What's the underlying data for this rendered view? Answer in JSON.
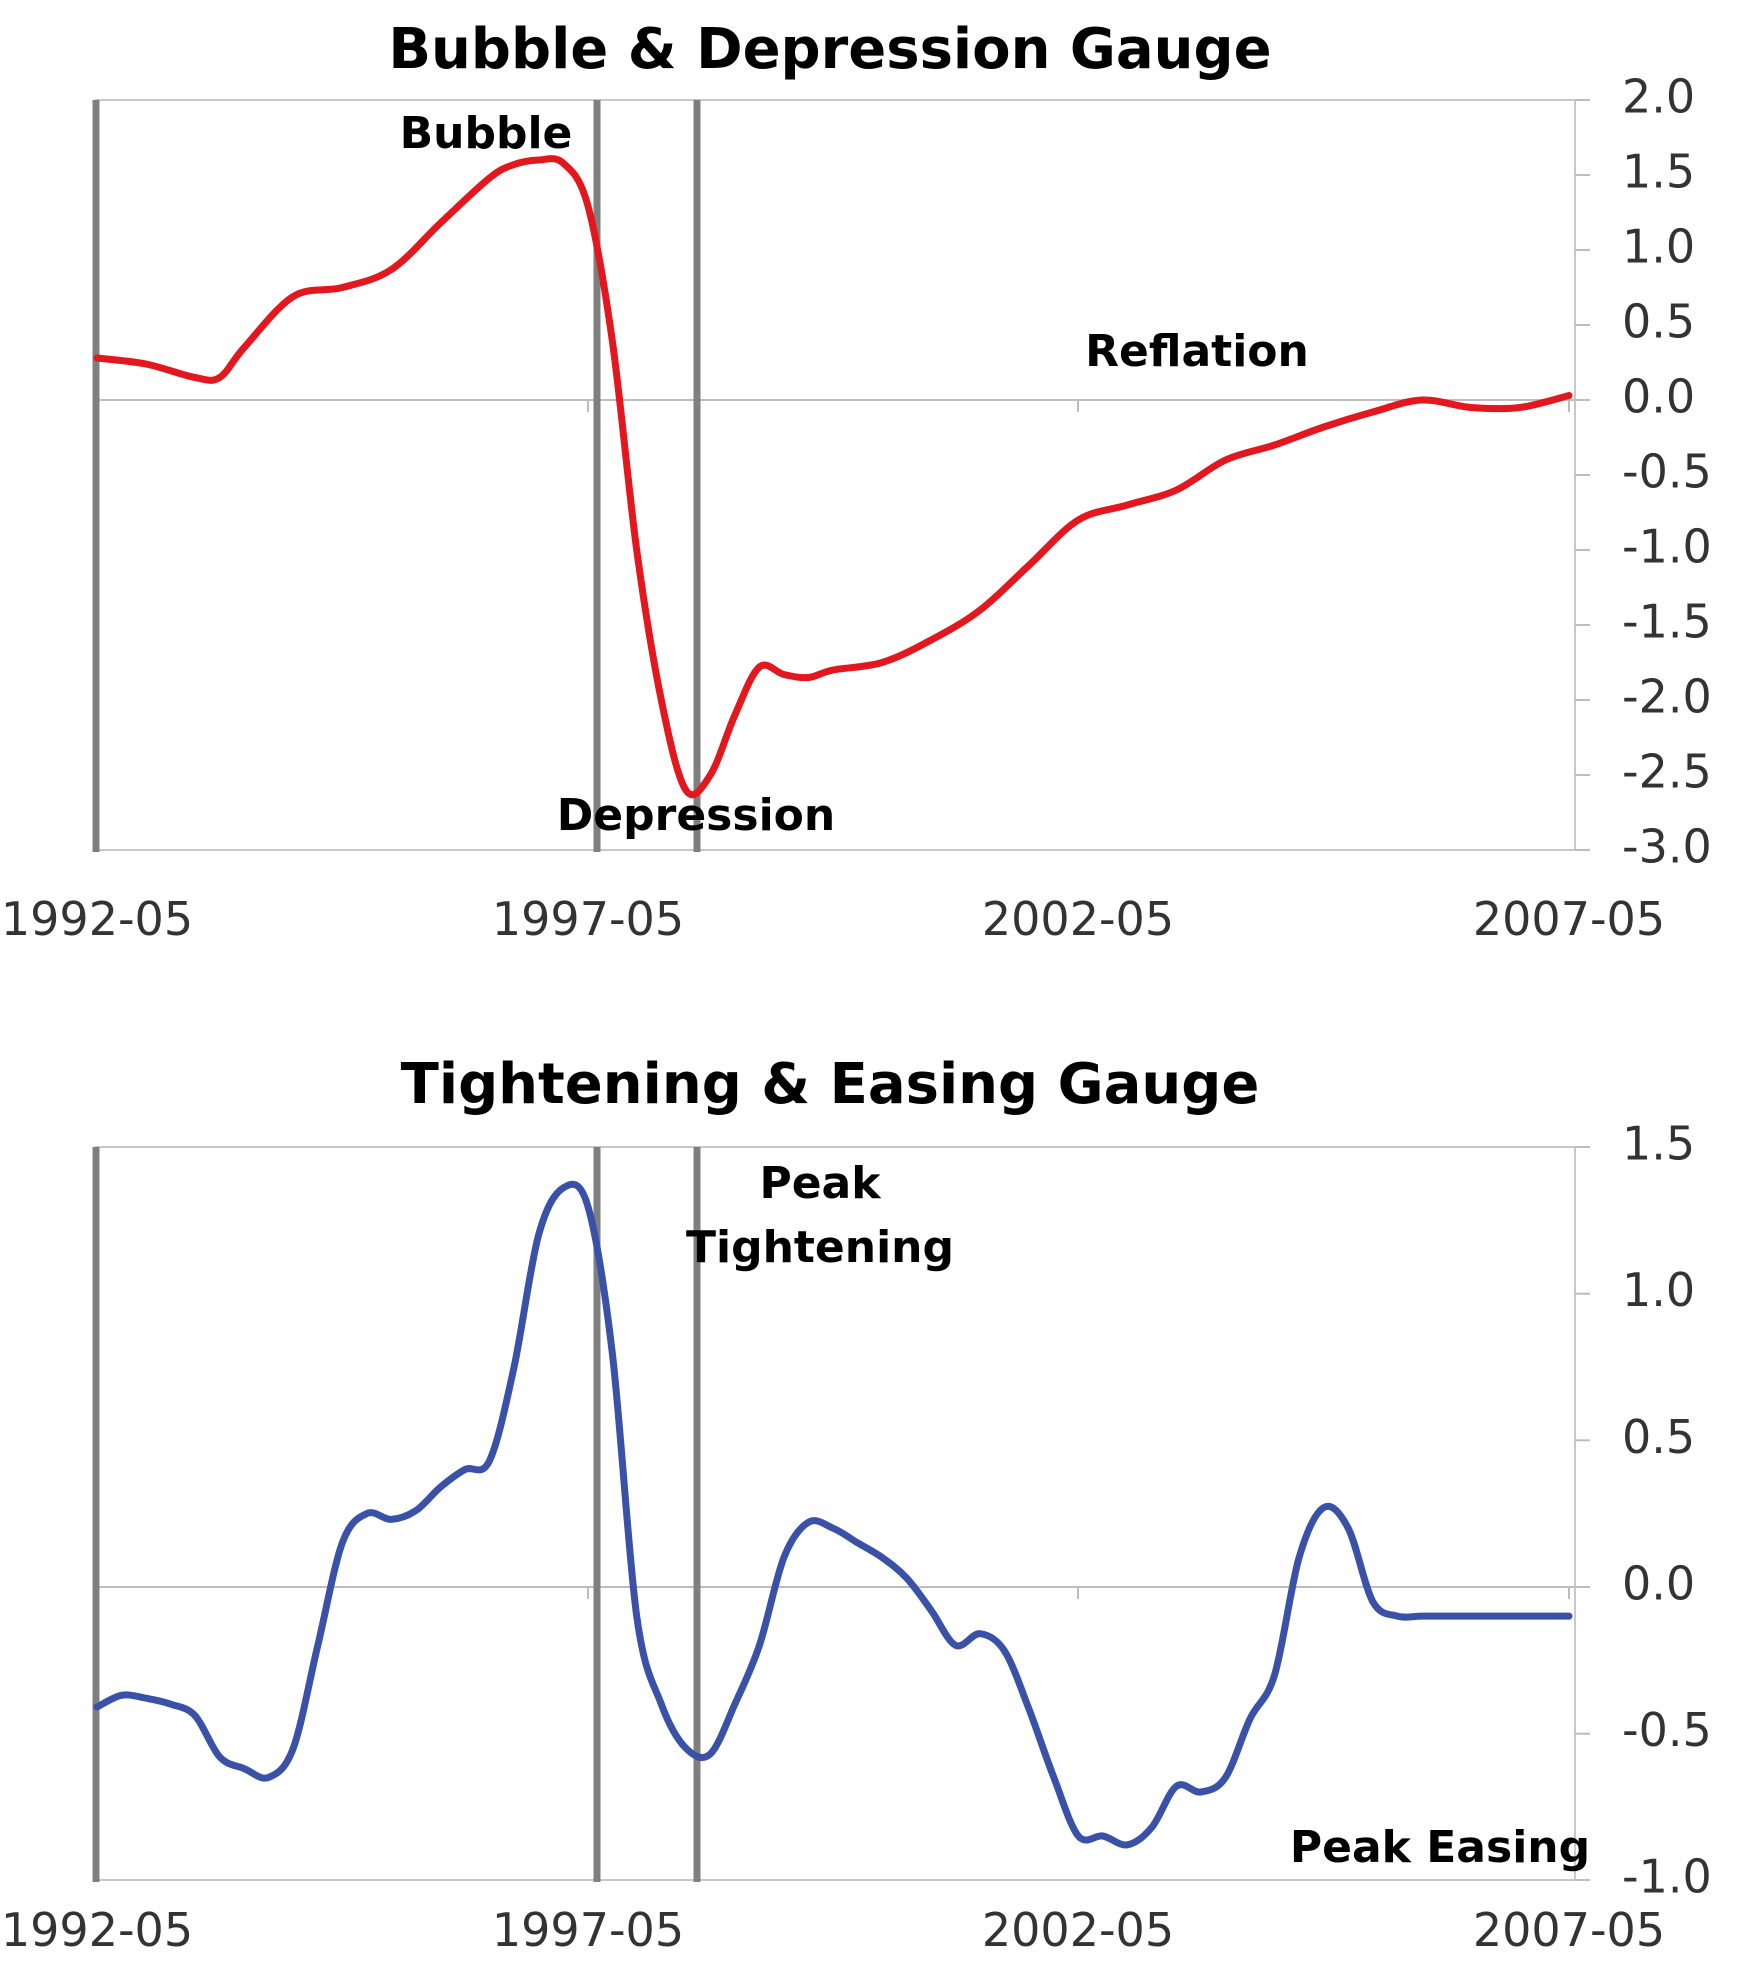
{
  "colors": {
    "bubble_series": "#e3171e",
    "easing_series": "#3a51a8",
    "event_lines": "#7f7f7f",
    "axis_lines": "#c8c8c8"
  },
  "chart_data": [
    {
      "type": "line",
      "title": "Bubble & Depression Gauge",
      "xlabel": "",
      "ylabel": "",
      "x_ticks": [
        "1992-05",
        "1997-05",
        "2002-05",
        "2007-05"
      ],
      "xlim": [
        "1992-05",
        "2007-05"
      ],
      "ylim": [
        -3.0,
        2.0
      ],
      "y_ticks": [
        "2.0",
        "1.5",
        "1.0",
        "0.5",
        "0.0",
        "-0.5",
        "-1.0",
        "-1.5",
        "-2.0",
        "-2.5",
        "-3.0"
      ],
      "y_axis_side": "right",
      "grid": false,
      "legend": "none",
      "vertical_markers": [
        "1992-05",
        "1997-05",
        "1998-05"
      ],
      "annotations": [
        {
          "text": "Bubble",
          "x": "1996-05",
          "y": 1.8
        },
        {
          "text": "Reflation",
          "x": "2003-05",
          "y": 0.32
        },
        {
          "text": "Depression",
          "x": "1998-03",
          "y": -2.9
        }
      ],
      "series": [
        {
          "x": [
            "1992-05",
            "1992-11",
            "1993-05",
            "1993-08",
            "1993-11",
            "1994-05",
            "1994-11",
            "1995-05",
            "1995-11",
            "1996-05",
            "1996-08",
            "1996-11",
            "1997-02",
            "1997-05",
            "1997-08",
            "1997-11",
            "1998-02",
            "1998-05",
            "1998-08",
            "1998-11",
            "1999-02",
            "1999-05",
            "1999-08",
            "1999-11",
            "2000-05",
            "2000-11",
            "2001-05",
            "2001-11",
            "2002-05",
            "2002-11",
            "2003-05",
            "2003-11",
            "2004-05",
            "2004-11",
            "2005-05",
            "2005-11",
            "2006-05",
            "2006-11",
            "2007-05"
          ],
          "values": [
            0.28,
            0.24,
            0.15,
            0.15,
            0.35,
            0.69,
            0.75,
            0.87,
            1.18,
            1.48,
            1.57,
            1.6,
            1.58,
            1.3,
            0.4,
            -1.0,
            -2.0,
            -2.6,
            -2.5,
            -2.1,
            -1.78,
            -1.83,
            -1.85,
            -1.8,
            -1.75,
            -1.6,
            -1.4,
            -1.1,
            -0.8,
            -0.7,
            -0.6,
            -0.4,
            -0.3,
            -0.18,
            -0.08,
            0.0,
            -0.05,
            -0.05,
            0.03
          ]
        }
      ]
    },
    {
      "type": "line",
      "title": "Tightening & Easing Gauge",
      "xlabel": "",
      "ylabel": "",
      "x_ticks": [
        "1992-05",
        "1997-05",
        "2002-05",
        "2007-05"
      ],
      "xlim": [
        "1992-05",
        "2007-05"
      ],
      "ylim": [
        -1.0,
        1.5
      ],
      "y_ticks": [
        "1.5",
        "1.0",
        "0.5",
        "0.0",
        "-0.5",
        "-1.0"
      ],
      "y_axis_side": "right",
      "grid": false,
      "legend": "none",
      "vertical_markers": [
        "1992-05",
        "1997-05",
        "1998-05"
      ],
      "annotations": [
        {
          "text": "Peak",
          "x": "1999-05",
          "y": 1.32
        },
        {
          "text": "Tightening",
          "x": "1999-05",
          "y": 1.1
        },
        {
          "text": "Peak Easing",
          "x": "2006-03",
          "y": -0.95
        }
      ],
      "series": [
        {
          "x": [
            "1992-05",
            "1992-08",
            "1992-11",
            "1993-02",
            "1993-05",
            "1993-08",
            "1993-11",
            "1994-02",
            "1994-05",
            "1994-08",
            "1994-11",
            "1995-02",
            "1995-05",
            "1995-08",
            "1995-11",
            "1996-02",
            "1996-05",
            "1996-08",
            "1996-11",
            "1997-02",
            "1997-05",
            "1997-08",
            "1997-11",
            "1998-02",
            "1998-05",
            "1998-08",
            "1998-11",
            "1999-02",
            "1999-05",
            "1999-08",
            "1999-11",
            "2000-02",
            "2000-05",
            "2000-08",
            "2000-11",
            "2001-02",
            "2001-05",
            "2001-08",
            "2001-11",
            "2002-02",
            "2002-05",
            "2002-08",
            "2002-11",
            "2003-02",
            "2003-05",
            "2003-08",
            "2003-11",
            "2004-02",
            "2004-05",
            "2004-08",
            "2004-11",
            "2005-02",
            "2005-05",
            "2005-08",
            "2005-11",
            "2006-02",
            "2006-05",
            "2006-08",
            "2006-11",
            "2007-02",
            "2007-05"
          ],
          "values": [
            -0.41,
            -0.37,
            -0.38,
            -0.4,
            -0.44,
            -0.58,
            -0.62,
            -0.65,
            -0.55,
            -0.2,
            0.15,
            0.25,
            0.23,
            0.26,
            0.34,
            0.4,
            0.43,
            0.75,
            1.2,
            1.36,
            1.3,
            0.8,
            -0.1,
            -0.4,
            -0.55,
            -0.57,
            -0.4,
            -0.2,
            0.1,
            0.22,
            0.2,
            0.15,
            0.1,
            0.03,
            -0.08,
            -0.2,
            -0.16,
            -0.22,
            -0.42,
            -0.65,
            -0.85,
            -0.85,
            -0.88,
            -0.82,
            -0.68,
            -0.7,
            -0.65,
            -0.45,
            -0.3,
            0.1,
            0.27,
            0.2,
            -0.05,
            -0.1,
            -0.1,
            -0.1,
            -0.1,
            -0.1,
            -0.1,
            -0.1,
            -0.1
          ]
        }
      ]
    }
  ]
}
